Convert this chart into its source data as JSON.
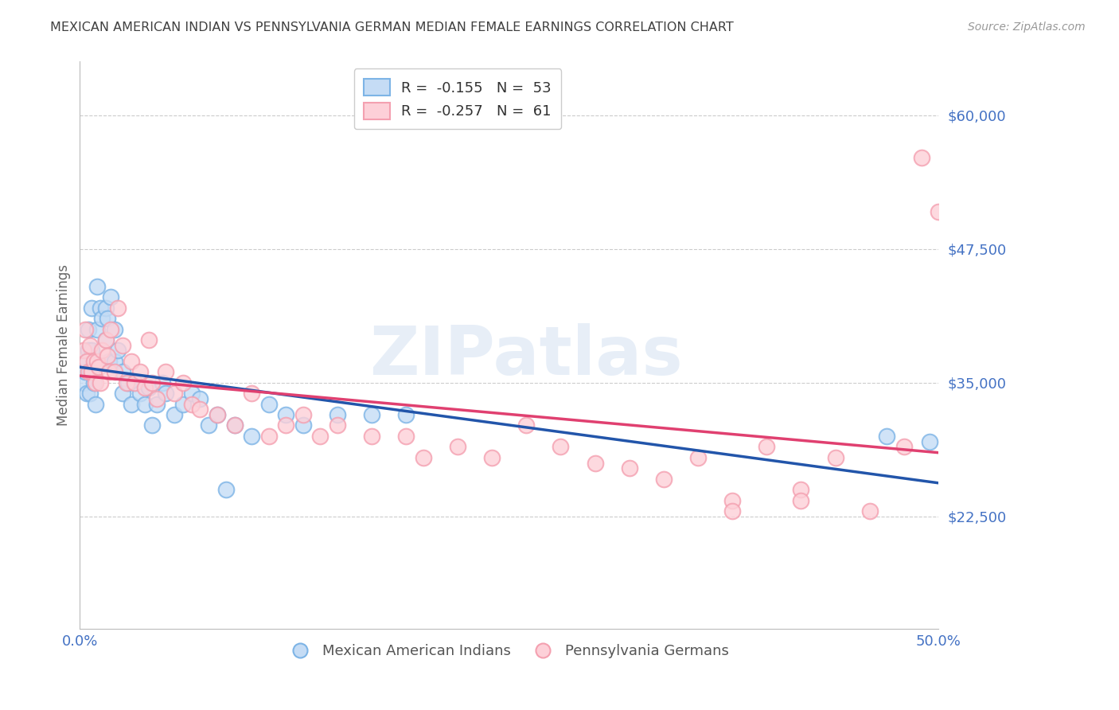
{
  "title": "MEXICAN AMERICAN INDIAN VS PENNSYLVANIA GERMAN MEDIAN FEMALE EARNINGS CORRELATION CHART",
  "source": "Source: ZipAtlas.com",
  "ylabel": "Median Female Earnings",
  "watermark": "ZIPatlas",
  "legend_labels_bottom": [
    "Mexican American Indians",
    "Pennsylvania Germans"
  ],
  "xlim": [
    0.0,
    0.5
  ],
  "ylim": [
    12000,
    65000
  ],
  "yticks": [
    22500,
    35000,
    47500,
    60000
  ],
  "ytick_labels": [
    "$22,500",
    "$35,000",
    "$47,500",
    "$60,000"
  ],
  "xticks": [
    0.0,
    0.1,
    0.2,
    0.3,
    0.4,
    0.5
  ],
  "xtick_labels": [
    "0.0%",
    "",
    "",
    "",
    "",
    "50.0%"
  ],
  "blue_color": "#7db4e6",
  "pink_color": "#f4a0b0",
  "blue_fill_color": "#c5dcf5",
  "pink_fill_color": "#fdd0d8",
  "blue_line_color": "#2255aa",
  "pink_line_color": "#e04070",
  "title_color": "#404040",
  "axis_label_color": "#666666",
  "tick_label_color": "#4472c4",
  "grid_color": "#cccccc",
  "background_color": "#ffffff",
  "blue_scatter_x": [
    0.002,
    0.003,
    0.004,
    0.004,
    0.005,
    0.005,
    0.006,
    0.006,
    0.007,
    0.007,
    0.008,
    0.009,
    0.01,
    0.01,
    0.012,
    0.013,
    0.015,
    0.015,
    0.016,
    0.017,
    0.018,
    0.02,
    0.02,
    0.022,
    0.025,
    0.025,
    0.028,
    0.03,
    0.032,
    0.035,
    0.038,
    0.04,
    0.042,
    0.045,
    0.048,
    0.05,
    0.055,
    0.06,
    0.065,
    0.07,
    0.075,
    0.08,
    0.085,
    0.09,
    0.1,
    0.11,
    0.12,
    0.13,
    0.15,
    0.17,
    0.19,
    0.47,
    0.495
  ],
  "blue_scatter_y": [
    35000,
    36000,
    37000,
    34000,
    40000,
    38000,
    36000,
    34000,
    42000,
    38000,
    35000,
    33000,
    44000,
    40000,
    42000,
    41000,
    42000,
    39000,
    41000,
    37000,
    43000,
    40000,
    37000,
    38000,
    36000,
    34000,
    35000,
    33000,
    35000,
    34000,
    33000,
    34500,
    31000,
    33000,
    35000,
    34000,
    32000,
    33000,
    34000,
    33500,
    31000,
    32000,
    25000,
    31000,
    30000,
    33000,
    32000,
    31000,
    32000,
    32000,
    32000,
    30000,
    29500
  ],
  "pink_scatter_x": [
    0.002,
    0.003,
    0.004,
    0.005,
    0.006,
    0.007,
    0.008,
    0.009,
    0.01,
    0.011,
    0.012,
    0.013,
    0.015,
    0.016,
    0.017,
    0.018,
    0.02,
    0.022,
    0.025,
    0.027,
    0.03,
    0.032,
    0.035,
    0.038,
    0.04,
    0.042,
    0.045,
    0.05,
    0.055,
    0.06,
    0.065,
    0.07,
    0.08,
    0.09,
    0.1,
    0.11,
    0.12,
    0.13,
    0.14,
    0.15,
    0.17,
    0.19,
    0.2,
    0.22,
    0.24,
    0.26,
    0.28,
    0.3,
    0.32,
    0.34,
    0.36,
    0.38,
    0.4,
    0.42,
    0.44,
    0.46,
    0.48,
    0.49,
    0.5,
    0.38,
    0.42
  ],
  "pink_scatter_y": [
    38000,
    40000,
    37000,
    36000,
    38500,
    36000,
    37000,
    35000,
    37000,
    36500,
    35000,
    38000,
    39000,
    37500,
    36000,
    40000,
    36000,
    42000,
    38500,
    35000,
    37000,
    35000,
    36000,
    34500,
    39000,
    35000,
    33500,
    36000,
    34000,
    35000,
    33000,
    32500,
    32000,
    31000,
    34000,
    30000,
    31000,
    32000,
    30000,
    31000,
    30000,
    30000,
    28000,
    29000,
    28000,
    31000,
    29000,
    27500,
    27000,
    26000,
    28000,
    24000,
    29000,
    25000,
    28000,
    23000,
    29000,
    56000,
    51000,
    23000,
    24000
  ]
}
